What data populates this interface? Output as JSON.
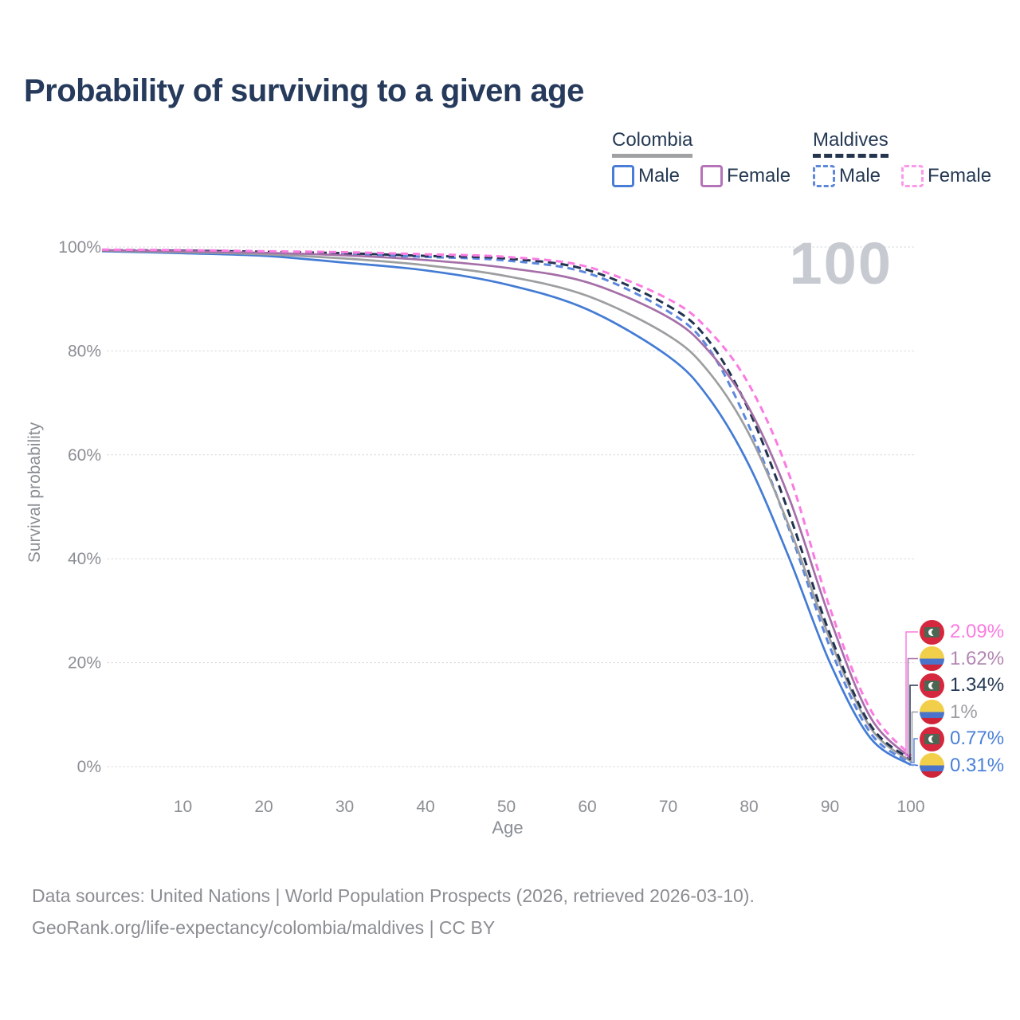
{
  "title": "Probability of surviving to a given age",
  "watermark": "100",
  "legend": {
    "groups": [
      {
        "name": "Colombia",
        "line_style": "solid",
        "underline_color": "#9fa1a3",
        "items": [
          {
            "label": "Male",
            "color": "#4a7dd6",
            "dashed": false
          },
          {
            "label": "Female",
            "color": "#b573b8",
            "dashed": false
          }
        ]
      },
      {
        "name": "Maldives",
        "line_style": "dashed",
        "underline_color": "#26354f",
        "items": [
          {
            "label": "Male",
            "color": "#5d87dd",
            "dashed": true
          },
          {
            "label": "Female",
            "color": "#fb9ae8",
            "dashed": true
          }
        ]
      }
    ]
  },
  "chart_data": {
    "type": "line",
    "title": "Probability of surviving to a given age",
    "xlabel": "Age",
    "ylabel": "Survival probability",
    "xlim": [
      0,
      100
    ],
    "ylim": [
      0,
      100
    ],
    "grid": "horizontal",
    "legend_position": "top-right",
    "x_ticks": [
      10,
      20,
      30,
      40,
      50,
      60,
      70,
      80,
      90,
      100
    ],
    "y_ticks": [
      {
        "value": 0,
        "label": "0%"
      },
      {
        "value": 20,
        "label": "20%"
      },
      {
        "value": 40,
        "label": "40%"
      },
      {
        "value": 60,
        "label": "60%"
      },
      {
        "value": 80,
        "label": "80%"
      },
      {
        "value": 100,
        "label": "100%"
      }
    ],
    "x": [
      0,
      10,
      20,
      30,
      40,
      50,
      60,
      70,
      75,
      80,
      85,
      90,
      95,
      100
    ],
    "series": [
      {
        "id": "maldives-female",
        "country": "Maldives",
        "sex": "Female",
        "flag": "maldives",
        "line_color": "#fb7be1",
        "label_color": "#fb7be1",
        "dash": "9 6",
        "end_label": "2.09%",
        "values": [
          99.5,
          99.4,
          99.2,
          99.0,
          98.6,
          98.1,
          96.2,
          90.0,
          84.0,
          73.5,
          56.0,
          30.5,
          11.0,
          2.09
        ]
      },
      {
        "id": "colombia-female",
        "country": "Colombia",
        "sex": "Female",
        "flag": "colombia",
        "line_color": "#a56fa8",
        "label_color": "#b286b2",
        "dash": "",
        "end_label": "1.62%",
        "values": [
          99.4,
          99.2,
          98.9,
          98.4,
          97.5,
          96.0,
          93.2,
          86.5,
          80.0,
          69.0,
          51.5,
          28.5,
          9.5,
          1.62
        ]
      },
      {
        "id": "maldives-both",
        "country": "Maldives",
        "sex": "Both sexes",
        "flag": "maldives",
        "line_color": "#233450",
        "label_color": "#263a54",
        "dash": "10 6",
        "end_label": "1.34%",
        "values": [
          99.4,
          99.3,
          99.1,
          98.8,
          98.3,
          97.8,
          95.6,
          88.7,
          82.0,
          68.5,
          48.5,
          25.5,
          8.0,
          1.34
        ]
      },
      {
        "id": "colombia-both",
        "country": "Colombia",
        "sex": "Both sexes",
        "flag": "colombia",
        "line_color": "#9c9ea0",
        "label_color": "#9c9ea0",
        "dash": "",
        "end_label": "1%",
        "values": [
          99.3,
          99.0,
          98.6,
          97.8,
          96.5,
          94.4,
          90.6,
          83.0,
          76.0,
          64.0,
          46.0,
          24.5,
          7.5,
          1.0
        ]
      },
      {
        "id": "maldives-male",
        "country": "Maldives",
        "sex": "Male",
        "flag": "maldives",
        "line_color": "#5d87dd",
        "label_color": "#4a80d9",
        "dash": "9 6",
        "end_label": "0.77%",
        "values": [
          99.3,
          99.2,
          99.0,
          98.6,
          98.1,
          97.4,
          95.0,
          87.6,
          80.5,
          65.5,
          45.5,
          23.0,
          6.5,
          0.77
        ]
      },
      {
        "id": "colombia-male",
        "country": "Colombia",
        "sex": "Male",
        "flag": "colombia",
        "line_color": "#437bd5",
        "label_color": "#4a80d9",
        "dash": "",
        "end_label": "0.31%",
        "values": [
          99.2,
          98.8,
          98.3,
          97.0,
          95.5,
          92.8,
          88.0,
          79.0,
          71.0,
          58.0,
          40.0,
          20.0,
          5.5,
          0.31
        ]
      }
    ],
    "watermark": "100"
  },
  "footer": {
    "line1": "Data sources: United Nations | World Population Prospects (2026, retrieved 2026-03-10).",
    "line2": "GeoRank.org/life-expectancy/colombia/maldives | CC BY"
  }
}
